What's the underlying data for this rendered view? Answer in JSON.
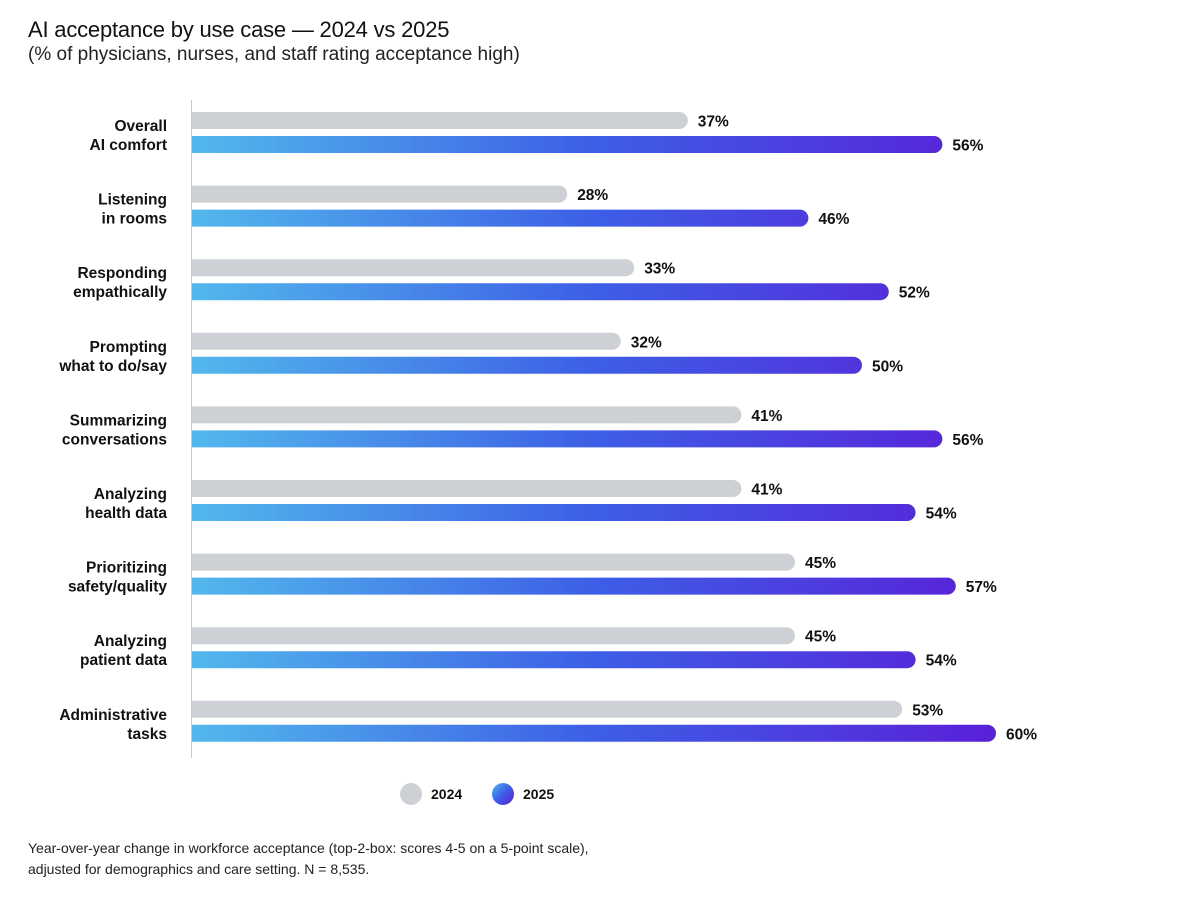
{
  "chart_data": {
    "type": "bar",
    "orientation": "horizontal",
    "title": "AI acceptance by use case — 2024 vs 2025",
    "subtitle": "(% of physicians, nurses, and staff rating acceptance high)",
    "categories": [
      [
        "Overall",
        "AI comfort"
      ],
      [
        "Listening",
        "in rooms"
      ],
      [
        "Responding",
        "empathically"
      ],
      [
        "Prompting",
        "what to do/say"
      ],
      [
        "Summarizing",
        "conversations"
      ],
      [
        "Analyzing",
        "health data"
      ],
      [
        "Prioritizing",
        "safety/quality"
      ],
      [
        "Analyzing",
        "patient data"
      ],
      [
        "Administrative",
        "tasks"
      ]
    ],
    "series": [
      {
        "name": "2024",
        "values": [
          37,
          28,
          33,
          32,
          41,
          41,
          45,
          45,
          53
        ],
        "color": "#cdd0d4"
      },
      {
        "name": "2025",
        "values": [
          56,
          46,
          52,
          50,
          56,
          54,
          57,
          54,
          60
        ],
        "gradient": [
          "#52b8ec",
          "#5a1fd8"
        ]
      }
    ],
    "value_suffix": "%",
    "xlim": [
      0,
      70
    ],
    "grid": false,
    "legend_position": "bottom",
    "footnote": [
      "Year-over-year change in workforce acceptance (top-2-box: scores 4-5 on a 5-point scale),",
      "adjusted for demographics and care setting. N = 8,535."
    ]
  }
}
